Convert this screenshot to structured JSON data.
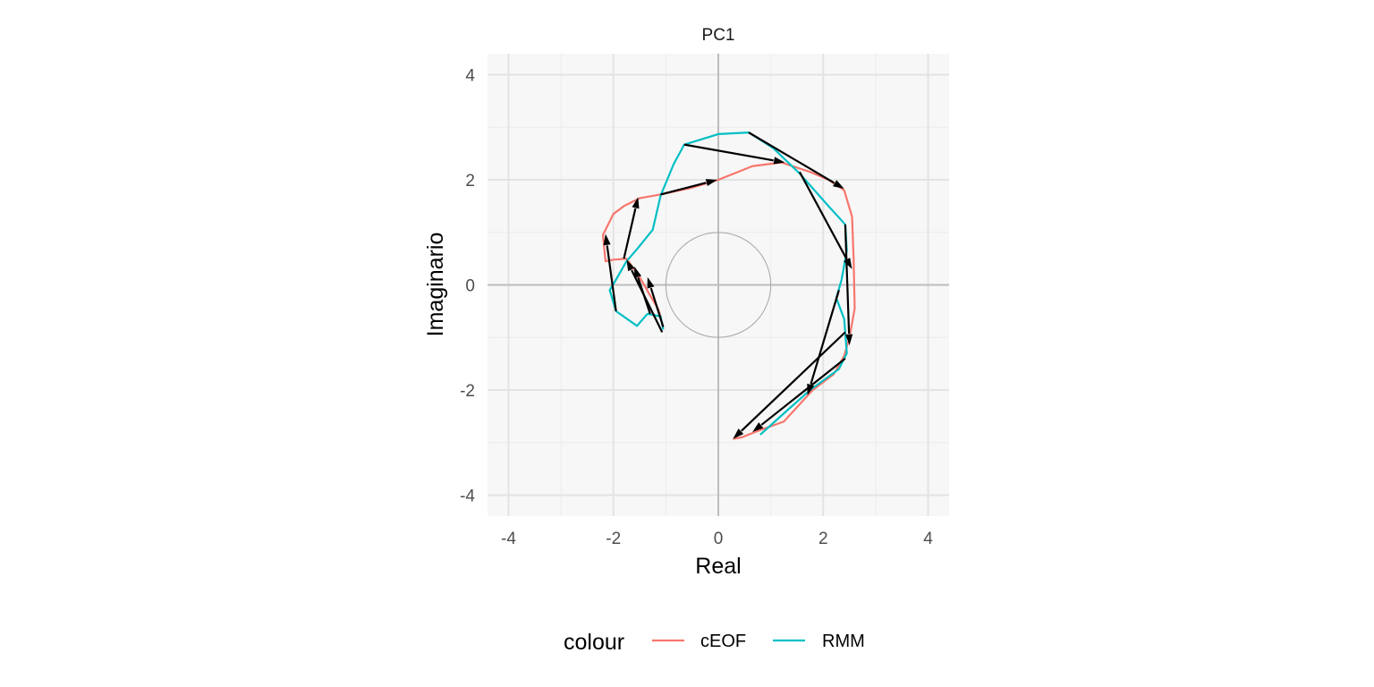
{
  "chart_data": {
    "type": "line",
    "title": "PC1",
    "xlabel": "Real",
    "ylabel": "Imaginario",
    "xlim": [
      -4.4,
      4.4
    ],
    "ylim": [
      -4.4,
      4.4
    ],
    "x_ticks": [
      "-4",
      "-2",
      "0",
      "2",
      "4"
    ],
    "y_ticks": [
      "-4",
      "-2",
      "0",
      "2",
      "4"
    ],
    "x_tick_values": [
      -4,
      -2,
      0,
      2,
      4
    ],
    "y_tick_values": [
      -4,
      -2,
      0,
      2,
      4
    ],
    "grid": true,
    "unit_circle_radius": 1,
    "legend": {
      "title": "colour",
      "position": "bottom",
      "entries": [
        {
          "label": "cEOF",
          "color": "#F8766D"
        },
        {
          "label": "RMM",
          "color": "#00BFC4"
        }
      ]
    },
    "series": [
      {
        "name": "cEOF",
        "color": "#F8766D",
        "x": [
          -1.1,
          -1.15,
          -1.3,
          -1.5,
          -1.75,
          -2.0,
          -2.15,
          -2.2,
          -2.0,
          -1.8,
          -1.5,
          -1.1,
          -0.5,
          0.0,
          0.65,
          1.2,
          1.75,
          2.1,
          2.4,
          2.55,
          2.58,
          2.6,
          2.5,
          2.4,
          2.2,
          1.8,
          1.25,
          0.75,
          0.45,
          0.28
        ],
        "y": [
          -0.6,
          -0.45,
          -0.2,
          0.15,
          0.5,
          0.48,
          0.45,
          0.95,
          1.35,
          1.5,
          1.65,
          1.72,
          1.85,
          2.0,
          2.26,
          2.33,
          2.15,
          2.0,
          1.8,
          1.3,
          0.5,
          -0.45,
          -1.0,
          -1.35,
          -1.7,
          -2.0,
          -2.6,
          -2.78,
          -2.9,
          -2.93
        ]
      },
      {
        "name": "RMM",
        "color": "#00BFC4",
        "x": [
          -1.05,
          -1.1,
          -1.35,
          -1.55,
          -1.95,
          -2.07,
          -1.95,
          -1.75,
          -1.55,
          -1.25,
          -1.1,
          -0.85,
          -0.65,
          0.0,
          0.58,
          1.05,
          1.55,
          2.1,
          2.42,
          2.45,
          2.35,
          2.25,
          2.4,
          2.45,
          2.3,
          1.75,
          1.3,
          0.8
        ],
        "y": [
          -0.85,
          -0.6,
          -0.55,
          -0.78,
          -0.5,
          -0.1,
          0.1,
          0.45,
          0.68,
          1.05,
          1.7,
          2.3,
          2.67,
          2.87,
          2.9,
          2.6,
          2.12,
          1.5,
          1.15,
          0.65,
          0.1,
          -0.25,
          -0.65,
          -1.3,
          -1.6,
          -2.0,
          -2.4,
          -2.85
        ]
      }
    ],
    "arrows": [
      {
        "x1": 0.58,
        "y1": 2.9,
        "x2": 2.4,
        "y2": 1.83
      },
      {
        "x1": -0.65,
        "y1": 2.67,
        "x2": 1.27,
        "y2": 2.33
      },
      {
        "x1": 1.55,
        "y1": 2.15,
        "x2": 2.55,
        "y2": 0.3
      },
      {
        "x1": 2.42,
        "y1": 1.15,
        "x2": 2.5,
        "y2": -1.15
      },
      {
        "x1": 2.3,
        "y1": -0.1,
        "x2": 1.7,
        "y2": -2.1
      },
      {
        "x1": 2.42,
        "y1": -1.4,
        "x2": 0.65,
        "y2": -2.8
      },
      {
        "x1": 2.42,
        "y1": -0.9,
        "x2": 0.28,
        "y2": -2.93
      },
      {
        "x1": -1.07,
        "y1": -0.9,
        "x2": -1.75,
        "y2": 0.48
      },
      {
        "x1": -1.05,
        "y1": -0.8,
        "x2": -1.35,
        "y2": 0.15
      },
      {
        "x1": -1.3,
        "y1": -0.55,
        "x2": -1.6,
        "y2": 0.35
      },
      {
        "x1": -1.8,
        "y1": 0.5,
        "x2": -1.53,
        "y2": 1.67
      },
      {
        "x1": -1.95,
        "y1": -0.5,
        "x2": -2.15,
        "y2": 0.97
      },
      {
        "x1": -1.1,
        "y1": 1.72,
        "x2": -0.02,
        "y2": 2.0
      }
    ]
  }
}
